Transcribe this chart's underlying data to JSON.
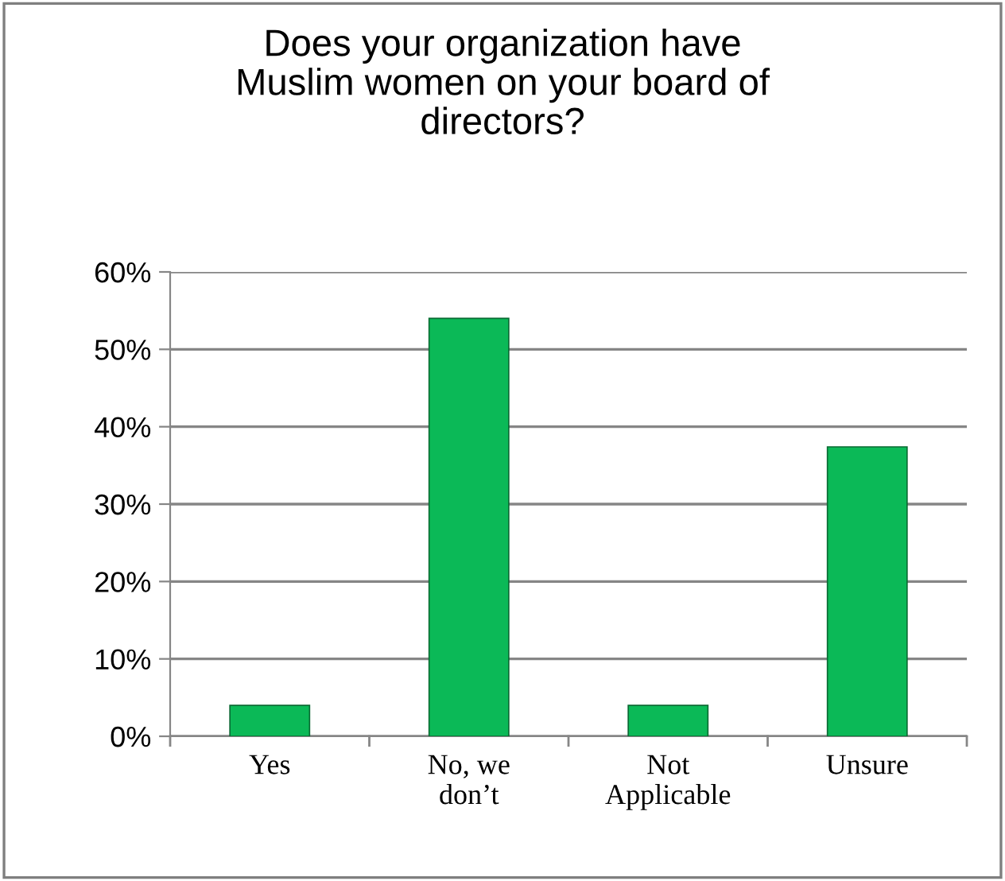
{
  "chart_data": {
    "type": "bar",
    "title": "Does your organization have\nMuslim women on your board of\ndirectors?",
    "categories": [
      "Yes",
      "No, we\ndon’t",
      "Not\nApplicable",
      "Unsure"
    ],
    "values": [
      4,
      54,
      4,
      37.4
    ],
    "color": "#0bb957",
    "ylim": [
      0,
      60
    ],
    "yticks": [
      {
        "value": 0,
        "label": "0%"
      },
      {
        "value": 10,
        "label": "10%"
      },
      {
        "value": 20,
        "label": "20%"
      },
      {
        "value": 30,
        "label": "30%"
      },
      {
        "value": 40,
        "label": "40%"
      },
      {
        "value": 50,
        "label": "50%"
      },
      {
        "value": 60,
        "label": "60%"
      }
    ],
    "grid": "y",
    "legend": false
  }
}
